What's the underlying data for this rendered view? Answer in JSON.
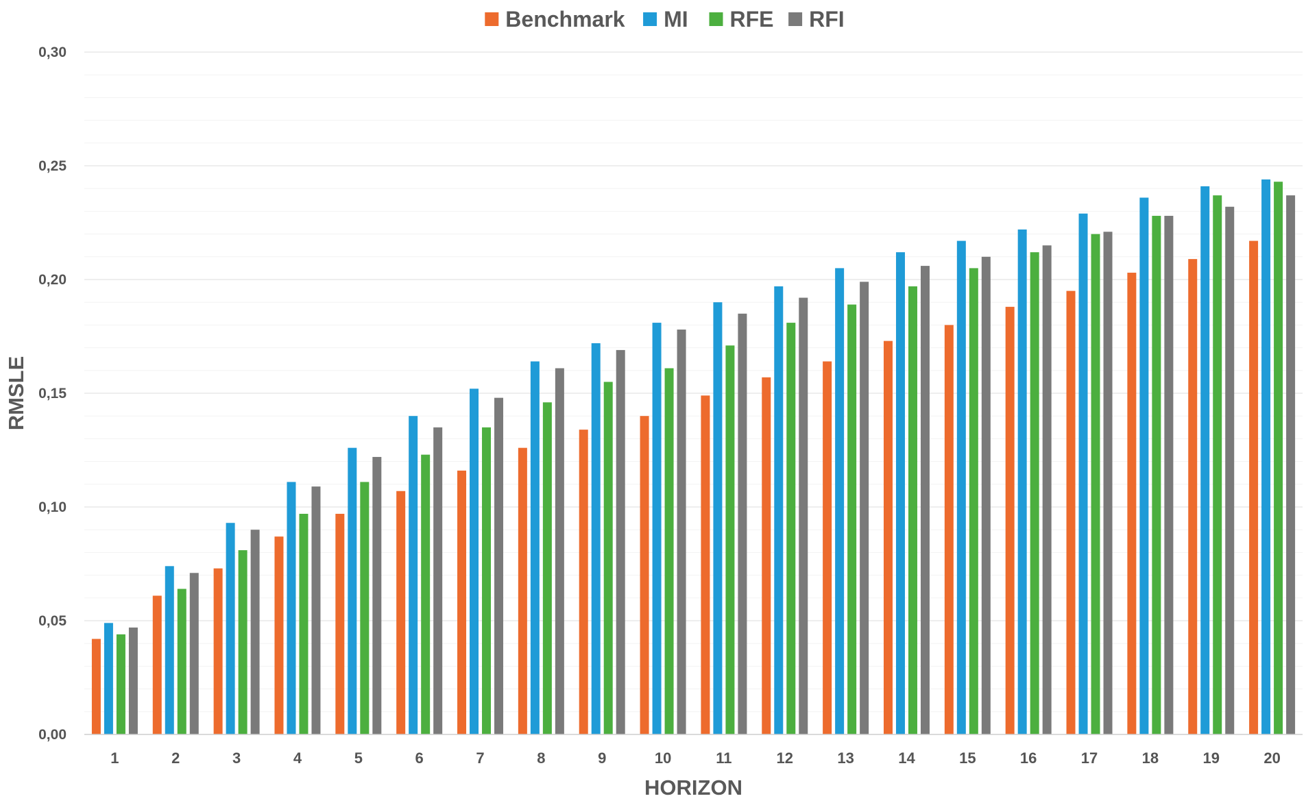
{
  "chart_data": {
    "type": "bar",
    "title": "",
    "xlabel": "HORIZON",
    "ylabel": "RMSLE",
    "ylim": [
      0,
      0.3
    ],
    "yticks": [
      "0,00",
      "0,05",
      "0,10",
      "0,15",
      "0,20",
      "0,25",
      "0,30"
    ],
    "ytick_values": [
      0,
      0.05,
      0.1,
      0.15,
      0.2,
      0.25,
      0.3
    ],
    "grid": true,
    "legend_position": "top-center",
    "categories": [
      "1",
      "2",
      "3",
      "4",
      "5",
      "6",
      "7",
      "8",
      "9",
      "10",
      "11",
      "12",
      "13",
      "14",
      "15",
      "16",
      "17",
      "18",
      "19",
      "20"
    ],
    "series": [
      {
        "name": "Benchmark",
        "color": "#ED6B2D",
        "values": [
          0.042,
          0.061,
          0.073,
          0.087,
          0.097,
          0.107,
          0.116,
          0.126,
          0.134,
          0.14,
          0.149,
          0.157,
          0.164,
          0.173,
          0.18,
          0.188,
          0.195,
          0.203,
          0.209,
          0.217
        ]
      },
      {
        "name": "MI",
        "color": "#1F9BD7",
        "values": [
          0.049,
          0.074,
          0.093,
          0.111,
          0.126,
          0.14,
          0.152,
          0.164,
          0.172,
          0.181,
          0.19,
          0.197,
          0.205,
          0.212,
          0.217,
          0.222,
          0.229,
          0.236,
          0.241,
          0.244
        ]
      },
      {
        "name": "RFE",
        "color": "#4CAF3F",
        "values": [
          0.044,
          0.064,
          0.081,
          0.097,
          0.111,
          0.123,
          0.135,
          0.146,
          0.155,
          0.161,
          0.171,
          0.181,
          0.189,
          0.197,
          0.205,
          0.212,
          0.22,
          0.228,
          0.237,
          0.243
        ]
      },
      {
        "name": "RFI",
        "color": "#7A7A7A",
        "values": [
          0.047,
          0.071,
          0.09,
          0.109,
          0.122,
          0.135,
          0.148,
          0.161,
          0.169,
          0.178,
          0.185,
          0.192,
          0.199,
          0.206,
          0.21,
          0.215,
          0.221,
          0.228,
          0.232,
          0.237
        ]
      }
    ]
  }
}
